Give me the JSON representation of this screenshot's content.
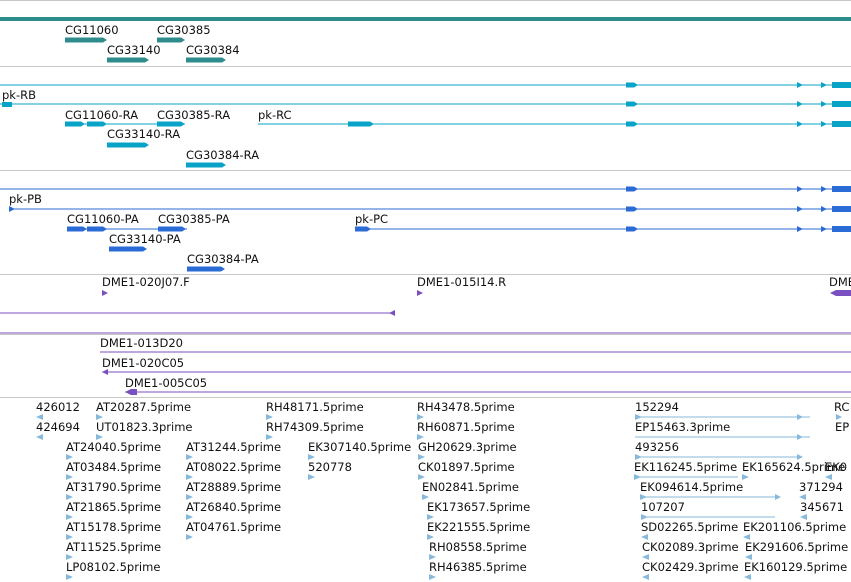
{
  "colors": {
    "gene": "#2f8c8c",
    "transcript": "#0aa3c8",
    "protein": "#2b6bd6",
    "clone": "#7a4fc0",
    "est": "#86b9dc",
    "separator": "#c8c8c8",
    "text": "#111111"
  },
  "tracks": {
    "genes": {
      "labels": [
        "CG11060",
        "CG30385",
        "CG33140",
        "CG30384"
      ]
    },
    "transcripts": {
      "labels": [
        "pk-RB",
        "CG11060-RA",
        "CG30385-RA",
        "pk-RC",
        "CG33140-RA",
        "CG30384-RA"
      ]
    },
    "proteins": {
      "labels": [
        "pk-PB",
        "CG11060-PA",
        "CG30385-PA",
        "pk-PC",
        "CG33140-PA",
        "CG30384-PA"
      ]
    },
    "clone_ends": {
      "labels": [
        "DME1-020J07.F",
        "DME1-015I14.R",
        "DME"
      ]
    },
    "clones": {
      "labels": [
        "DME1-013D20",
        "DME1-020C05",
        "DME1-005C05"
      ]
    },
    "ests": {
      "labels": [
        "426012",
        "AT20287.5prime",
        "RH48171.5prime",
        "RH43478.5prime",
        "152294",
        "RC",
        "424694",
        "UT01823.3prime",
        "RH74309.5prime",
        "RH60871.5prime",
        "EP15463.3prime",
        "EP",
        "AT24040.5prime",
        "AT31244.5prime",
        "EK307140.5prime",
        "GH20629.3prime",
        "493256",
        "AT03484.5prime",
        "AT08022.5prime",
        "520778",
        "CK01897.5prime",
        "EK116245.5prime",
        "EK165624.5prime",
        "EK0",
        "AT31790.5prime",
        "AT28889.5prime",
        "EN02841.5prime",
        "EK094614.5prime",
        "371294",
        "AT21865.5prime",
        "AT26840.5prime",
        "EK173657.5prime",
        "107207",
        "345671",
        "AT15178.5prime",
        "AT04761.5prime",
        "EK221555.5prime",
        "SD02265.5prime",
        "EK201106.5prime",
        "AT11525.5prime",
        "RH08558.5prime",
        "CK02089.3prime",
        "EK291606.5prime",
        "LP08102.5prime",
        "RH46385.5prime",
        "CK02429.3prime",
        "EK160129.5prime"
      ]
    }
  }
}
